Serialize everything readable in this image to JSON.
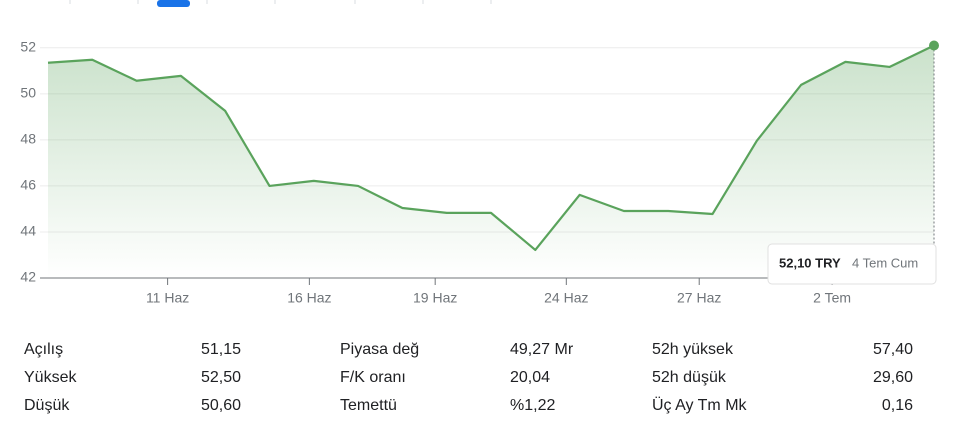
{
  "chart_data": {
    "type": "line",
    "x": [
      0,
      1,
      2,
      3,
      4,
      5,
      6,
      7,
      8,
      9,
      10,
      11,
      12,
      13,
      14,
      15,
      16,
      17,
      18,
      19,
      20
    ],
    "series": [
      {
        "color": "#5aa35c",
        "values": [
          51.35,
          51.48,
          50.57,
          50.78,
          49.26,
          46.0,
          46.22,
          46.0,
          45.04,
          44.83,
          44.83,
          43.22,
          45.61,
          44.91,
          44.91,
          44.78,
          47.96,
          50.39,
          51.39,
          51.17,
          52.1
        ]
      }
    ],
    "xlim": [
      0,
      20
    ],
    "xticks": [
      {
        "value": 2.7,
        "label": "11 Haz"
      },
      {
        "value": 5.9,
        "label": "16 Haz"
      },
      {
        "value": 8.74,
        "label": "19 Haz"
      },
      {
        "value": 11.7,
        "label": "24 Haz"
      },
      {
        "value": 14.7,
        "label": "27 Haz"
      },
      {
        "value": 17.7,
        "label": "2 Tem"
      }
    ],
    "ylim": [
      42,
      52.6
    ],
    "yticks": [
      42,
      44,
      46,
      48,
      50,
      52
    ],
    "grid": true,
    "tooltip": {
      "value": "52,10 TRY",
      "date": "4 Tem Cum"
    }
  },
  "stats": [
    [
      [
        "Açılış",
        "51,15"
      ],
      [
        "Yüksek",
        "52,50"
      ],
      [
        "Düşük",
        "50,60"
      ]
    ],
    [
      [
        "Piyasa değ",
        "49,27 Mr"
      ],
      [
        "F/K oranı",
        "20,04"
      ],
      [
        "Temettü",
        "%1,22"
      ]
    ],
    [
      [
        "52h yüksek",
        "57,40"
      ],
      [
        "52h düşük",
        "29,60"
      ],
      [
        "Üç Ay Tm Mk",
        "0,16"
      ]
    ]
  ]
}
